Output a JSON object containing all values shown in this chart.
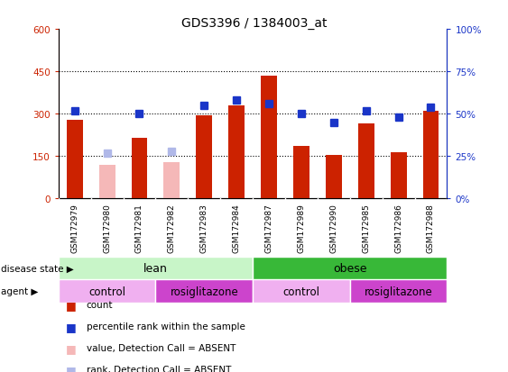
{
  "title": "GDS3396 / 1384003_at",
  "samples": [
    "GSM172979",
    "GSM172980",
    "GSM172981",
    "GSM172982",
    "GSM172983",
    "GSM172984",
    "GSM172987",
    "GSM172989",
    "GSM172990",
    "GSM172985",
    "GSM172986",
    "GSM172988"
  ],
  "count_values": [
    280,
    null,
    215,
    null,
    295,
    330,
    435,
    185,
    155,
    265,
    165,
    310
  ],
  "count_absent": [
    null,
    120,
    null,
    130,
    null,
    null,
    null,
    null,
    null,
    null,
    null,
    null
  ],
  "percentile_values": [
    52,
    null,
    50,
    null,
    55,
    58,
    56,
    50,
    45,
    52,
    48,
    54
  ],
  "percentile_absent": [
    null,
    27,
    null,
    28,
    null,
    null,
    null,
    null,
    null,
    null,
    null,
    null
  ],
  "ylim_left": [
    0,
    600
  ],
  "ylim_right": [
    0,
    100
  ],
  "yticks_left": [
    0,
    150,
    300,
    450,
    600
  ],
  "yticks_right": [
    0,
    25,
    50,
    75,
    100
  ],
  "ytick_labels_left": [
    "0",
    "150",
    "300",
    "450",
    "600"
  ],
  "ytick_labels_right": [
    "0%",
    "25%",
    "50%",
    "75%",
    "100%"
  ],
  "hlines": [
    150,
    300,
    450
  ],
  "color_count": "#cc2200",
  "color_count_absent": "#f5b8b8",
  "color_rank": "#1a35c8",
  "color_rank_absent": "#b0b8e8",
  "color_lean_light": "#c8f5c8",
  "color_lean_dark": "#50cc50",
  "color_obese": "#38b838",
  "color_control": "#f0b0f0",
  "color_rosig": "#cc44cc",
  "marker_size": 6,
  "bar_width": 0.5,
  "xtick_bg": "#c8c8c8"
}
